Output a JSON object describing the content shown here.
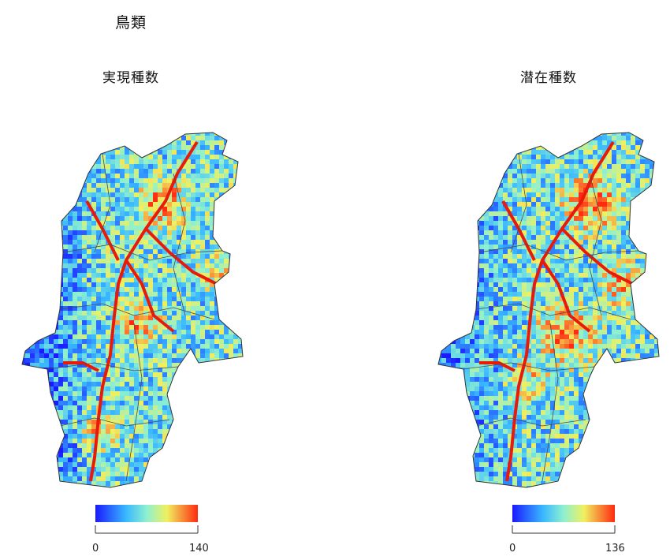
{
  "page_title": "鳥類",
  "colors": {
    "low": "#1a1aff",
    "mid_low": "#39b8ff",
    "mid": "#8ef0d0",
    "mid_high": "#f0f060",
    "high": "#ff3a10",
    "boundary": "#4a4a4a",
    "river": "#e81a0a"
  },
  "panels": [
    {
      "title": "実現種数",
      "legend": {
        "min_label": "0",
        "max_label": "140",
        "min": 0,
        "max": 140
      }
    },
    {
      "title": "潜在種数",
      "legend": {
        "min_label": "0",
        "max_label": "136",
        "min": 0,
        "max": 136
      }
    }
  ]
}
